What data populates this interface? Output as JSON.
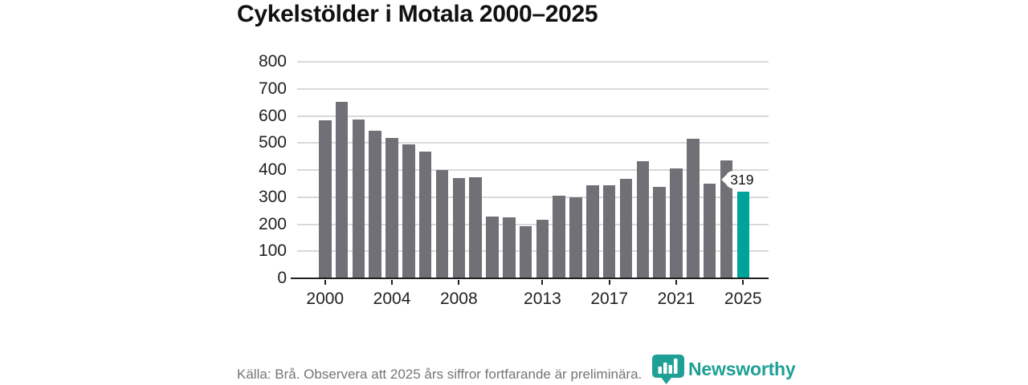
{
  "chart": {
    "title": "Cykelstölder i Motala 2000–2025"
  },
  "chart_data": {
    "type": "bar",
    "title": "Cykelstölder i Motala 2000–2025",
    "categories": [
      "2000",
      "2001",
      "2002",
      "2003",
      "2004",
      "2005",
      "2006",
      "2007",
      "2008",
      "2009",
      "2010",
      "2011",
      "2012",
      "2013",
      "2014",
      "2015",
      "2016",
      "2017",
      "2018",
      "2019",
      "2020",
      "2021",
      "2022",
      "2023",
      "2024",
      "2025"
    ],
    "values": [
      584,
      652,
      588,
      546,
      519,
      494,
      469,
      401,
      369,
      374,
      228,
      226,
      192,
      216,
      305,
      300,
      345,
      344,
      366,
      432,
      337,
      407,
      516,
      350,
      437,
      319
    ],
    "xlabel": "",
    "ylabel": "",
    "ylim": [
      0,
      800
    ],
    "yticks": [
      0,
      100,
      200,
      300,
      400,
      500,
      600,
      700,
      800
    ],
    "xtick_labels": [
      "2000",
      "2004",
      "2008",
      "2013",
      "2017",
      "2021",
      "2025"
    ],
    "xtick_indices": [
      0,
      4,
      8,
      13,
      17,
      21,
      25
    ],
    "grid": "horizontal",
    "legend": "none",
    "highlight_index": 25,
    "highlight_label": "319"
  },
  "footer": {
    "source_text": "Källa: Brå. Observera att 2025 års siffror fortfarande är preliminära.",
    "logo_text": "Newsworthy"
  },
  "colors": {
    "bar": "#707076",
    "accent": "#00A39B",
    "grid": "#D9D9D9",
    "axis": "#1F1F1F",
    "title_text": "#111111",
    "axis_text": "#222222",
    "source_text": "#757575",
    "logo": "#1FA096",
    "annotation_bg": "#FFFFFF",
    "annotation_text": "#111111"
  }
}
